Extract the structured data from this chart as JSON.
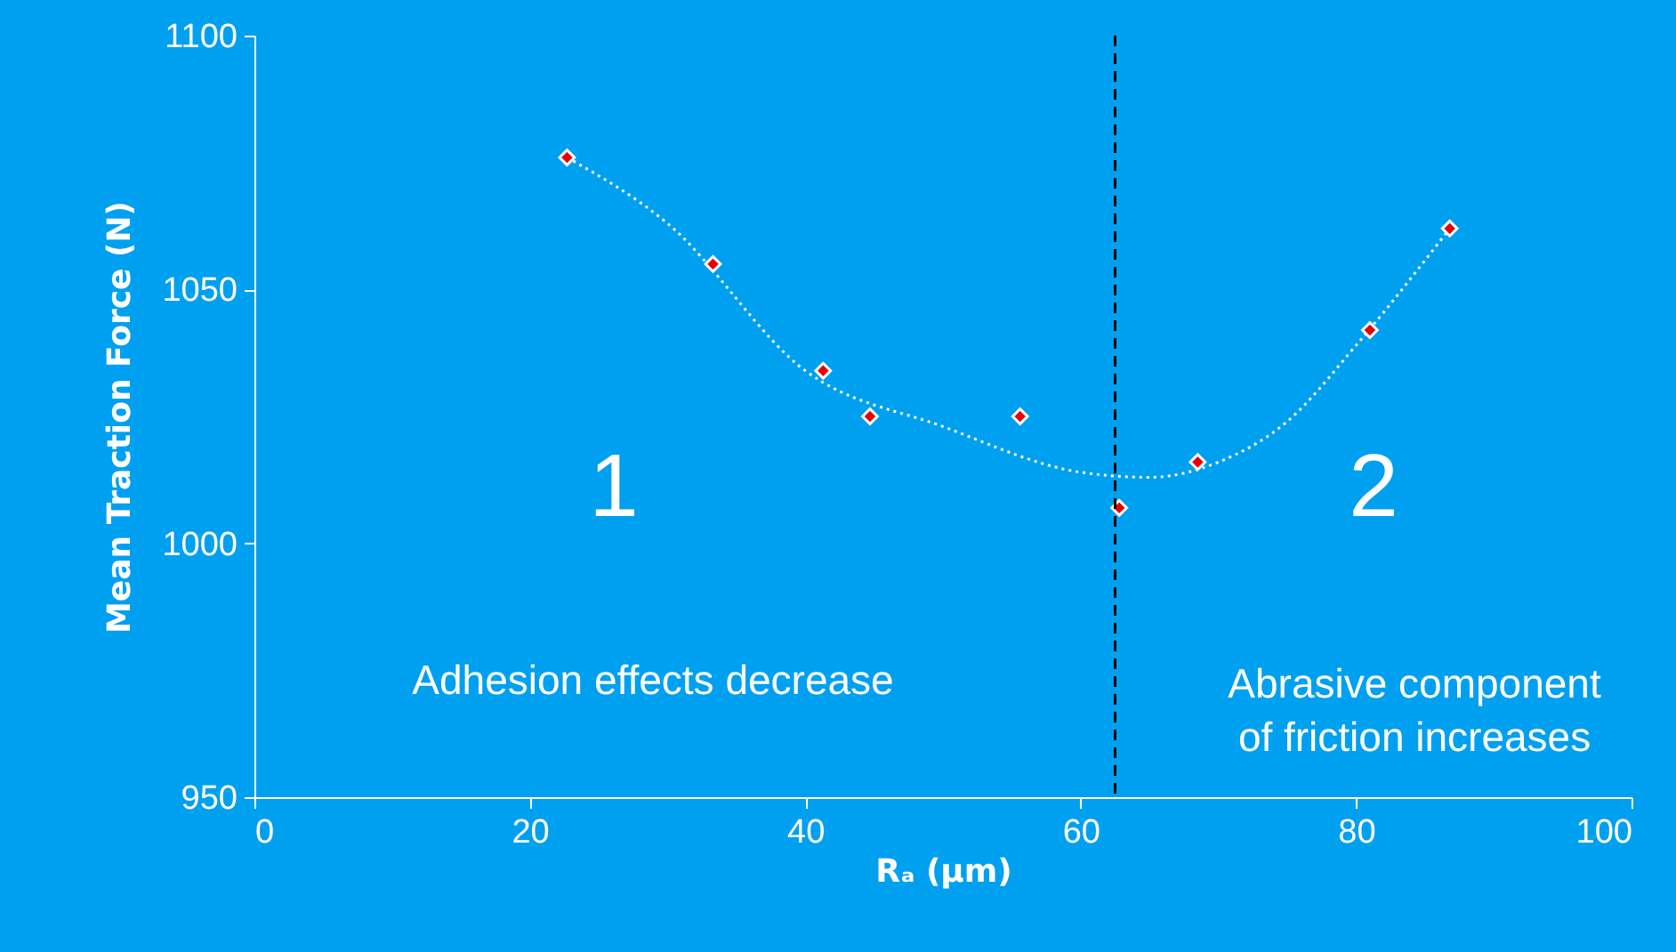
{
  "chart_data": {
    "type": "scatter",
    "xlabel": "Rₐ (µm)",
    "ylabel": "Mean Traction Force (N)",
    "xlim": [
      0,
      100
    ],
    "xticks": [
      0,
      20,
      40,
      60,
      80,
      100
    ],
    "ylim": [
      950,
      1100
    ],
    "yticks": [
      950,
      1000,
      1050,
      1100
    ],
    "grid": false,
    "series": [
      {
        "marker": "diamond",
        "color": "#e8000b",
        "x": [
          22.7,
          33.3,
          41.3,
          44.7,
          55.6,
          62.8,
          68.5,
          81.0,
          86.8
        ],
        "values": [
          1076,
          1055,
          1034,
          1025,
          1025,
          1007,
          1016,
          1042,
          1062
        ]
      },
      {
        "type": "line",
        "marker": "none",
        "color": "#ffffff",
        "line_style": "dotted",
        "x": [
          22.7,
          30,
          40,
          50,
          60,
          65,
          70,
          75,
          80,
          86.8
        ],
        "values": [
          1076,
          1063,
          1034,
          1023,
          1014,
          1013,
          1016,
          1024,
          1039,
          1062
        ]
      }
    ],
    "ref_lines": [
      {
        "axis": "x",
        "value": 62.5,
        "color": "#000000",
        "line_style": "dashed"
      }
    ],
    "annotations": [
      "1",
      "2",
      "Adhesion effects decrease",
      "Abrasive component\nof friction increases"
    ]
  }
}
